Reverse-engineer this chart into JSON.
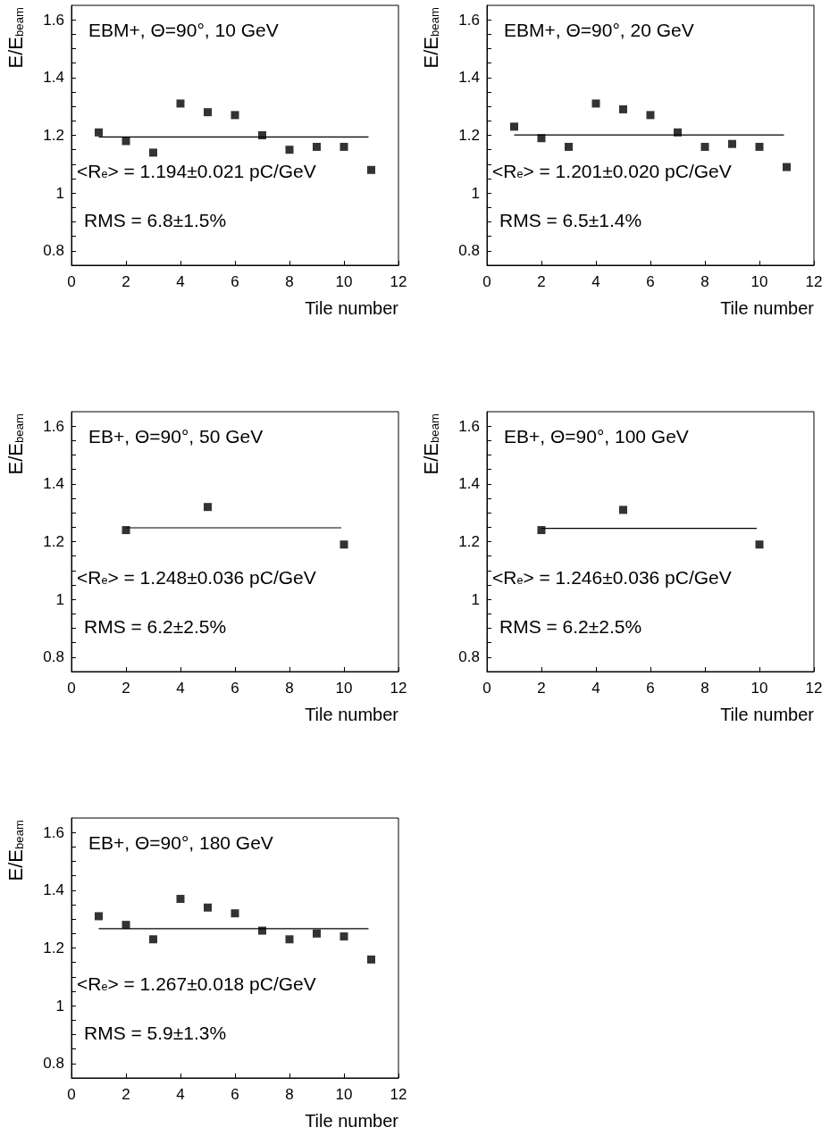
{
  "chart_data": [
    {
      "type": "scatter",
      "title": "EBM+, Θ=90°, 10 GeV",
      "xlabel": "Tile number",
      "ylabel": "E/E$_{beam}$",
      "annotations": [
        "<R$_{e}$> = 1.194±0.021 pC/GeV",
        "RMS = 6.8±1.5%"
      ],
      "xlim": [
        0,
        12
      ],
      "xticks": [
        0,
        2,
        4,
        6,
        8,
        10,
        12
      ],
      "ylim": [
        0.75,
        1.65
      ],
      "yticks": [
        {
          "value": 0.8,
          "label": "0.8"
        },
        {
          "value": 0.85,
          "label": null
        },
        {
          "value": 0.9,
          "label": null
        },
        {
          "value": 0.95,
          "label": null
        },
        {
          "value": 1,
          "label": "1"
        },
        {
          "value": 1.05,
          "label": null
        },
        {
          "value": 1.1,
          "label": null
        },
        {
          "value": 1.15,
          "label": null
        },
        {
          "value": 1.2,
          "label": "1.2"
        },
        {
          "value": 1.25,
          "label": null
        },
        {
          "value": 1.3,
          "label": null
        },
        {
          "value": 1.35,
          "label": null
        },
        {
          "value": 1.4,
          "label": "1.4"
        },
        {
          "value": 1.45,
          "label": null
        },
        {
          "value": 1.5,
          "label": null
        },
        {
          "value": 1.55,
          "label": null
        },
        {
          "value": 1.6,
          "label": "1.6"
        }
      ],
      "series": [
        {
          "marker": "square",
          "color": "#000000",
          "x": [
            1,
            2,
            3,
            4,
            5,
            6,
            7,
            8,
            9,
            10,
            11
          ],
          "values": [
            1.21,
            1.18,
            1.14,
            1.31,
            1.28,
            1.27,
            1.2,
            1.15,
            1.16,
            1.16,
            1.08
          ]
        },
        {
          "type": "line",
          "marker": "none",
          "color": "#000000",
          "x": [
            1,
            10.9
          ],
          "values": [
            1.194,
            1.194
          ]
        }
      ]
    },
    {
      "type": "scatter",
      "title": "EBM+, Θ=90°, 20 GeV",
      "xlabel": "Tile number",
      "ylabel": "E/E$_{beam}$",
      "annotations": [
        "<R$_{e}$> = 1.201±0.020 pC/GeV",
        "RMS = 6.5±1.4%"
      ],
      "xlim": [
        0,
        12
      ],
      "xticks": [
        0,
        2,
        4,
        6,
        8,
        10,
        12
      ],
      "ylim": [
        0.75,
        1.65
      ],
      "yticks": [
        {
          "value": 0.8,
          "label": "0.8"
        },
        {
          "value": 0.85,
          "label": null
        },
        {
          "value": 0.9,
          "label": null
        },
        {
          "value": 0.95,
          "label": null
        },
        {
          "value": 1,
          "label": "1"
        },
        {
          "value": 1.05,
          "label": null
        },
        {
          "value": 1.1,
          "label": null
        },
        {
          "value": 1.15,
          "label": null
        },
        {
          "value": 1.2,
          "label": "1.2"
        },
        {
          "value": 1.25,
          "label": null
        },
        {
          "value": 1.3,
          "label": null
        },
        {
          "value": 1.35,
          "label": null
        },
        {
          "value": 1.4,
          "label": "1.4"
        },
        {
          "value": 1.45,
          "label": null
        },
        {
          "value": 1.5,
          "label": null
        },
        {
          "value": 1.55,
          "label": null
        },
        {
          "value": 1.6,
          "label": "1.6"
        }
      ],
      "series": [
        {
          "marker": "square",
          "color": "#000000",
          "x": [
            1,
            2,
            3,
            4,
            5,
            6,
            7,
            8,
            9,
            10,
            11
          ],
          "values": [
            1.23,
            1.19,
            1.16,
            1.31,
            1.29,
            1.27,
            1.21,
            1.16,
            1.17,
            1.16,
            1.09
          ]
        },
        {
          "type": "line",
          "marker": "none",
          "color": "#000000",
          "x": [
            1,
            10.9
          ],
          "values": [
            1.201,
            1.201
          ]
        }
      ]
    },
    {
      "type": "scatter",
      "title": "EB+, Θ=90°, 50 GeV",
      "xlabel": "Tile number",
      "ylabel": "E/E$_{beam}$",
      "annotations": [
        "<R$_{e}$> = 1.248±0.036 pC/GeV",
        "RMS = 6.2±2.5%"
      ],
      "xlim": [
        0,
        12
      ],
      "xticks": [
        0,
        2,
        4,
        6,
        8,
        10,
        12
      ],
      "ylim": [
        0.75,
        1.65
      ],
      "yticks": [
        {
          "value": 0.8,
          "label": "0.8"
        },
        {
          "value": 0.85,
          "label": null
        },
        {
          "value": 0.9,
          "label": null
        },
        {
          "value": 0.95,
          "label": null
        },
        {
          "value": 1,
          "label": "1"
        },
        {
          "value": 1.05,
          "label": null
        },
        {
          "value": 1.1,
          "label": null
        },
        {
          "value": 1.15,
          "label": null
        },
        {
          "value": 1.2,
          "label": "1.2"
        },
        {
          "value": 1.25,
          "label": null
        },
        {
          "value": 1.3,
          "label": null
        },
        {
          "value": 1.35,
          "label": null
        },
        {
          "value": 1.4,
          "label": "1.4"
        },
        {
          "value": 1.45,
          "label": null
        },
        {
          "value": 1.5,
          "label": null
        },
        {
          "value": 1.55,
          "label": null
        },
        {
          "value": 1.6,
          "label": "1.6"
        }
      ],
      "series": [
        {
          "marker": "square",
          "color": "#000000",
          "x": [
            2,
            5,
            10
          ],
          "values": [
            1.24,
            1.32,
            1.19
          ]
        },
        {
          "type": "line",
          "marker": "none",
          "color": "#000000",
          "x": [
            2,
            9.9
          ],
          "values": [
            1.248,
            1.248
          ]
        }
      ]
    },
    {
      "type": "scatter",
      "title": "EB+, Θ=90°, 100 GeV",
      "xlabel": "Tile number",
      "ylabel": "E/E$_{beam}$",
      "annotations": [
        "<R$_{e}$> = 1.246±0.036 pC/GeV",
        "RMS = 6.2±2.5%"
      ],
      "xlim": [
        0,
        12
      ],
      "xticks": [
        0,
        2,
        4,
        6,
        8,
        10,
        12
      ],
      "ylim": [
        0.75,
        1.65
      ],
      "yticks": [
        {
          "value": 0.8,
          "label": "0.8"
        },
        {
          "value": 0.85,
          "label": null
        },
        {
          "value": 0.9,
          "label": null
        },
        {
          "value": 0.95,
          "label": null
        },
        {
          "value": 1,
          "label": "1"
        },
        {
          "value": 1.05,
          "label": null
        },
        {
          "value": 1.1,
          "label": null
        },
        {
          "value": 1.15,
          "label": null
        },
        {
          "value": 1.2,
          "label": "1.2"
        },
        {
          "value": 1.25,
          "label": null
        },
        {
          "value": 1.3,
          "label": null
        },
        {
          "value": 1.35,
          "label": null
        },
        {
          "value": 1.4,
          "label": "1.4"
        },
        {
          "value": 1.45,
          "label": null
        },
        {
          "value": 1.5,
          "label": null
        },
        {
          "value": 1.55,
          "label": null
        },
        {
          "value": 1.6,
          "label": "1.6"
        }
      ],
      "series": [
        {
          "marker": "square",
          "color": "#000000",
          "x": [
            2,
            5,
            10
          ],
          "values": [
            1.24,
            1.31,
            1.19
          ]
        },
        {
          "type": "line",
          "marker": "none",
          "color": "#000000",
          "x": [
            2,
            9.9
          ],
          "values": [
            1.246,
            1.246
          ]
        }
      ]
    },
    {
      "type": "scatter",
      "title": "EB+, Θ=90°, 180 GeV",
      "xlabel": "Tile number",
      "ylabel": "E/E$_{beam}$",
      "annotations": [
        "<R$_{e}$> = 1.267±0.018 pC/GeV",
        "RMS = 5.9±1.3%"
      ],
      "xlim": [
        0,
        12
      ],
      "xticks": [
        0,
        2,
        4,
        6,
        8,
        10,
        12
      ],
      "ylim": [
        0.75,
        1.65
      ],
      "yticks": [
        {
          "value": 0.8,
          "label": "0.8"
        },
        {
          "value": 0.85,
          "label": null
        },
        {
          "value": 0.9,
          "label": null
        },
        {
          "value": 0.95,
          "label": null
        },
        {
          "value": 1,
          "label": "1"
        },
        {
          "value": 1.05,
          "label": null
        },
        {
          "value": 1.1,
          "label": null
        },
        {
          "value": 1.15,
          "label": null
        },
        {
          "value": 1.2,
          "label": "1.2"
        },
        {
          "value": 1.25,
          "label": null
        },
        {
          "value": 1.3,
          "label": null
        },
        {
          "value": 1.35,
          "label": null
        },
        {
          "value": 1.4,
          "label": "1.4"
        },
        {
          "value": 1.45,
          "label": null
        },
        {
          "value": 1.5,
          "label": null
        },
        {
          "value": 1.55,
          "label": null
        },
        {
          "value": 1.6,
          "label": "1.6"
        }
      ],
      "series": [
        {
          "marker": "square",
          "color": "#000000",
          "x": [
            1,
            2,
            3,
            4,
            5,
            6,
            7,
            8,
            9,
            10,
            11
          ],
          "values": [
            1.31,
            1.28,
            1.23,
            1.37,
            1.34,
            1.32,
            1.26,
            1.23,
            1.25,
            1.24,
            1.16
          ]
        },
        {
          "type": "line",
          "marker": "none",
          "color": "#000000",
          "x": [
            1,
            10.9
          ],
          "values": [
            1.267,
            1.267
          ]
        }
      ]
    }
  ]
}
